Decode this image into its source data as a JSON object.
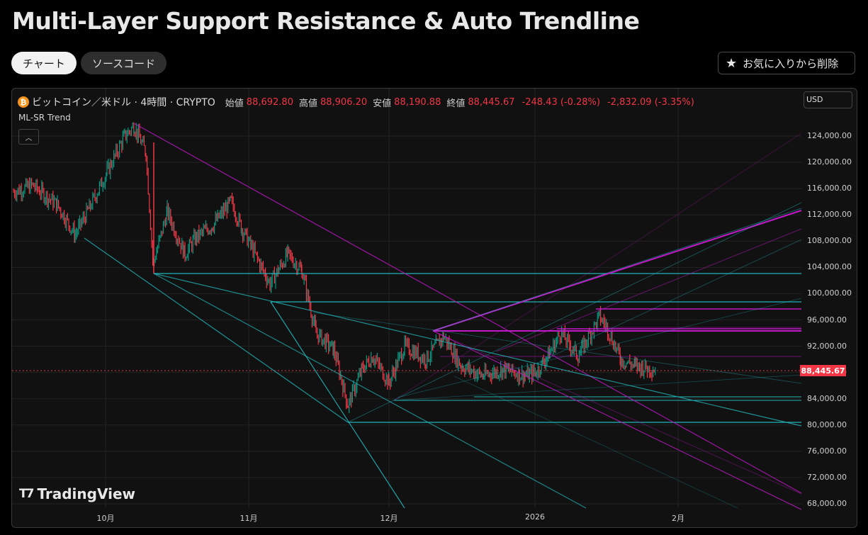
{
  "page": {
    "title": "Multi-Layer Support Resistance & Auto Trendline",
    "tabs": [
      {
        "label": "チャート",
        "active": true
      },
      {
        "label": "ソースコード",
        "active": false
      }
    ],
    "favorite_button": {
      "label": "お気に入りから削除",
      "icon": "star-icon"
    }
  },
  "legend": {
    "symbol": "ビットコイン／米ドル · 4時間 · CRYPTO",
    "open_label": "始値",
    "open": "88,692.80",
    "high_label": "高値",
    "high": "88,906.20",
    "low_label": "安値",
    "low": "88,190.88",
    "close_label": "終値",
    "close": "88,445.67",
    "change": "-248.43 (-0.28%)",
    "change2": "-2,832.09 (-3.35%)",
    "indicator": "ML-SR Trend",
    "currency": "USD"
  },
  "branding": "TradingView",
  "colors": {
    "up": "#089981",
    "down": "#f23645",
    "support": "#22b3b8",
    "resistance": "#c218c8",
    "background": "#111111"
  },
  "chart_data": {
    "type": "candlestick",
    "title": "BTC/USD 4H with Multi-Layer Support/Resistance & Trendlines",
    "y_ticks": [
      "124,000.00",
      "120,000.00",
      "116,000.00",
      "112,000.00",
      "108,000.00",
      "104,000.00",
      "100,000.00",
      "96,000.00",
      "92,000.00",
      "88,000.00",
      "84,000.00",
      "80,000.00",
      "76,000.00",
      "72,000.00",
      "68,000.00"
    ],
    "x_ticks": [
      "10月",
      "11月",
      "12月",
      "2026",
      "2月"
    ],
    "ylim": [
      66000,
      128000
    ],
    "last_price": "88,445.67",
    "price_path": {
      "x": [
        "Sep 15",
        "Sep 20",
        "Sep 25",
        "Sep 28",
        "Oct 1",
        "Oct 3",
        "Oct 6",
        "Oct 8",
        "Oct 10",
        "Oct 11",
        "Oct 14",
        "Oct 17",
        "Oct 20",
        "Oct 24",
        "Oct 27",
        "Oct 30",
        "Nov 4",
        "Nov 7",
        "Nov 11",
        "Nov 14",
        "Nov 18",
        "Nov 21",
        "Nov 24",
        "Nov 27",
        "Dec 1",
        "Dec 4",
        "Dec 8",
        "Dec 12",
        "Dec 15",
        "Dec 18",
        "Dec 22",
        "Dec 26",
        "Dec 30",
        "Jan 2",
        "Jan 6",
        "Jan 10",
        "Jan 14",
        "Jan 16",
        "Jan 20",
        "Jan 23",
        "Jan 26"
      ],
      "close": [
        115500,
        116500,
        113500,
        109000,
        113000,
        118500,
        124000,
        125500,
        121500,
        104500,
        112500,
        106000,
        108500,
        110500,
        114000,
        110000,
        101500,
        106000,
        103500,
        94000,
        91500,
        83000,
        88500,
        90500,
        86500,
        92000,
        90000,
        93500,
        89000,
        87500,
        88500,
        87500,
        88000,
        91000,
        94000,
        90500,
        96500,
        95000,
        90000,
        89000,
        88445
      ]
    },
    "horizontal_levels": [
      {
        "price": 103200,
        "type": "support"
      },
      {
        "price": 98800,
        "type": "support"
      },
      {
        "price": 97800,
        "type": "resistance"
      },
      {
        "price": 94700,
        "type": "resistance"
      },
      {
        "price": 94400,
        "type": "resistance"
      },
      {
        "price": 90400,
        "type": "resistance"
      },
      {
        "price": 84200,
        "type": "support"
      },
      {
        "price": 83800,
        "type": "support"
      },
      {
        "price": 80500,
        "type": "support"
      }
    ]
  }
}
